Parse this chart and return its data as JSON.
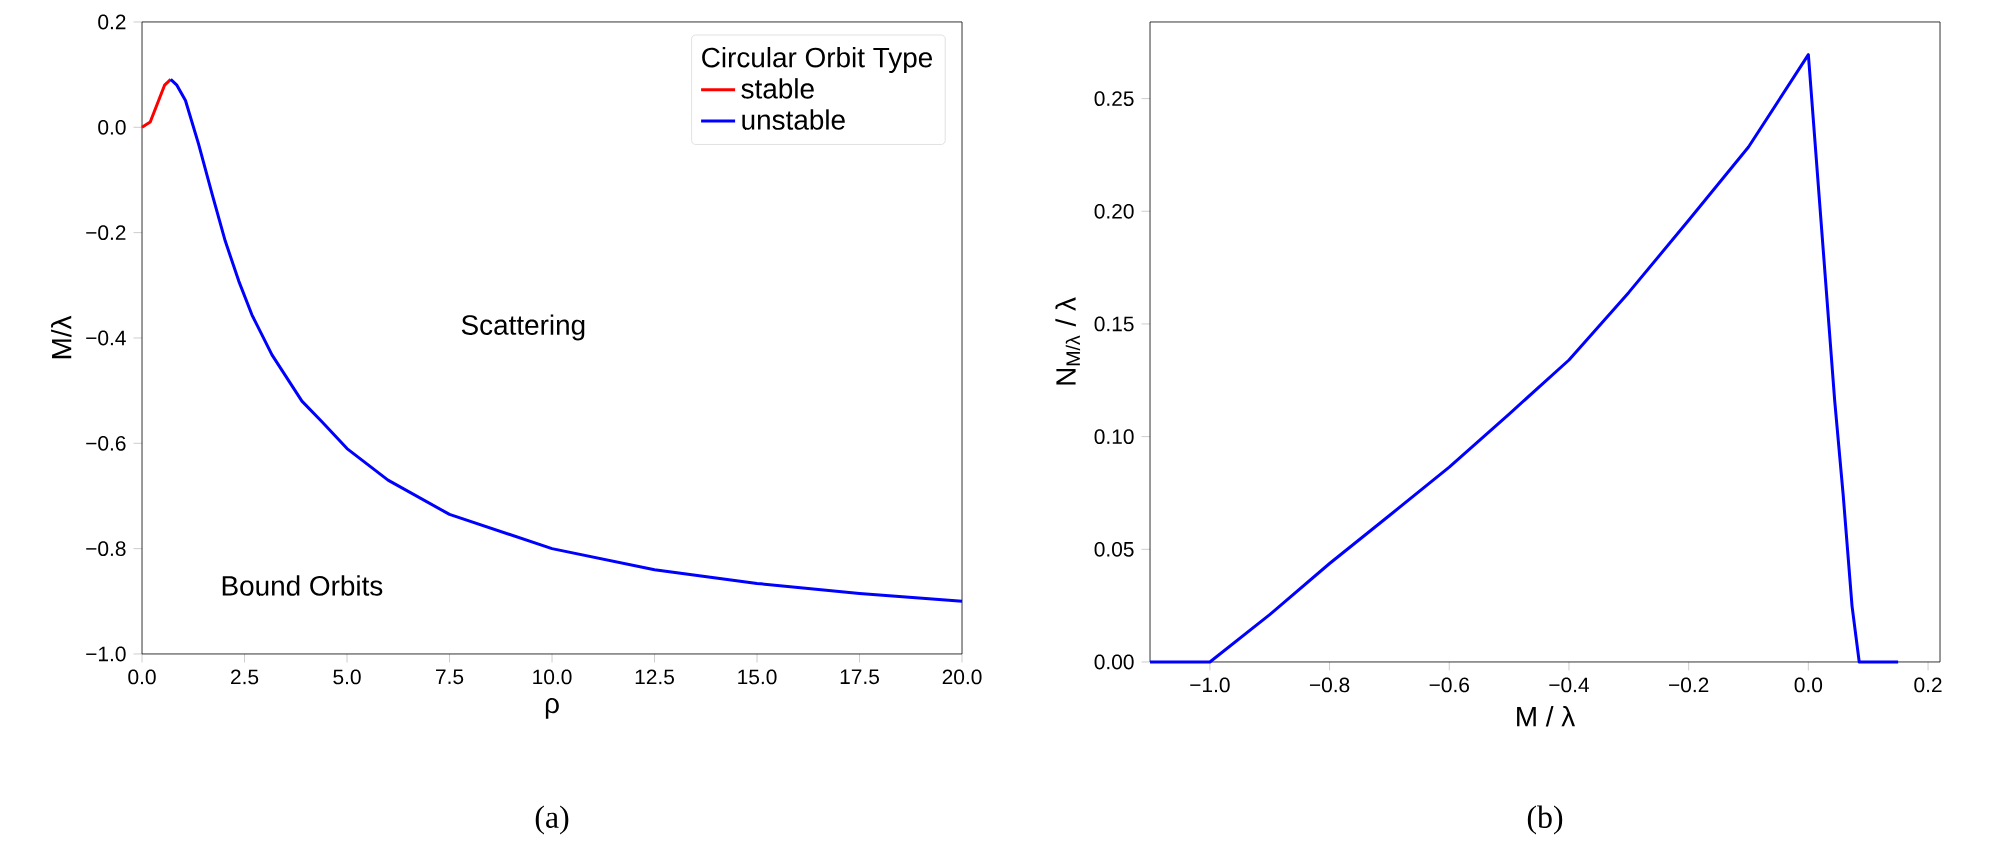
{
  "chart_data": [
    {
      "type": "line",
      "title": "(a)",
      "xlabel": "ρ",
      "ylabel": "M/λ",
      "legend_title": "Circular Orbit Type",
      "legend": "top right",
      "annotations": [
        "Scattering",
        "Bound Orbits"
      ],
      "xlim": [
        0,
        20
      ],
      "ylim": [
        -1.0,
        0.2
      ],
      "xticks": [
        {
          "value": 0,
          "label": "0.0"
        },
        {
          "value": 2.5,
          "label": "2.5"
        },
        {
          "value": 5,
          "label": "5.0"
        },
        {
          "value": 7.5,
          "label": "7.5"
        },
        {
          "value": 10,
          "label": "10.0"
        },
        {
          "value": 12.5,
          "label": "12.5"
        },
        {
          "value": 15,
          "label": "15.0"
        },
        {
          "value": 17.5,
          "label": "17.5"
        },
        {
          "value": 20,
          "label": "20.0"
        }
      ],
      "yticks": [
        {
          "value": -1.0,
          "label": "−1.0"
        },
        {
          "value": -0.8,
          "label": "−0.8"
        },
        {
          "value": -0.6,
          "label": "−0.6"
        },
        {
          "value": -0.4,
          "label": "−0.4"
        },
        {
          "value": -0.2,
          "label": "−0.2"
        },
        {
          "value": 0.0,
          "label": "0.0"
        },
        {
          "value": 0.2,
          "label": "0.2"
        }
      ],
      "series": [
        {
          "name": "stable",
          "color": "#ff0000",
          "x": [
            0,
            0.2,
            0.4,
            0.55,
            0.7
          ],
          "values": [
            0,
            0.01,
            0.05,
            0.08,
            0.091
          ]
        },
        {
          "name": "unstable",
          "color": "#0000ff",
          "x": [
            0.7,
            0.85,
            1.06,
            1.38,
            1.71,
            2.03,
            2.36,
            2.68,
            3.17,
            3.9,
            4.4,
            5,
            6,
            7.5,
            10,
            12.5,
            15,
            17.5,
            20
          ],
          "values": [
            0.091,
            0.08,
            0.051,
            -0.032,
            -0.127,
            -0.216,
            -0.292,
            -0.356,
            -0.432,
            -0.52,
            -0.56,
            -0.61,
            -0.67,
            -0.735,
            -0.8,
            -0.84,
            -0.866,
            -0.885,
            -0.9
          ]
        }
      ]
    },
    {
      "type": "line",
      "title": "(b)",
      "xlabel": "M / λ",
      "ylabel": "N$_{M/λ}$ / λ",
      "xlim": [
        -1.1,
        0.22
      ],
      "ylim": [
        0,
        0.284
      ],
      "xticks": [
        {
          "value": -1.0,
          "label": "−1.0"
        },
        {
          "value": -0.8,
          "label": "−0.8"
        },
        {
          "value": -0.6,
          "label": "−0.6"
        },
        {
          "value": -0.4,
          "label": "−0.4"
        },
        {
          "value": -0.2,
          "label": "−0.2"
        },
        {
          "value": 0.0,
          "label": "0.0"
        },
        {
          "value": 0.2,
          "label": "0.2"
        }
      ],
      "yticks": [
        {
          "value": 0,
          "label": "0.00"
        },
        {
          "value": 0.05,
          "label": "0.05"
        },
        {
          "value": 0.1,
          "label": "0.10"
        },
        {
          "value": 0.15,
          "label": "0.15"
        },
        {
          "value": 0.2,
          "label": "0.20"
        },
        {
          "value": 0.25,
          "label": "0.25"
        }
      ],
      "series": [
        {
          "color": "#0000ff",
          "x": [
            -1.1,
            -1.0,
            -0.9,
            -0.8,
            -0.7,
            -0.6,
            -0.5,
            -0.4,
            -0.3,
            -0.2,
            -0.1,
            0.0,
            0.044,
            0.058,
            0.073,
            0.085,
            0.15
          ],
          "values": [
            0,
            0,
            0.021,
            0.0437,
            0.065,
            0.0865,
            0.11,
            0.134,
            0.164,
            0.196,
            0.2285,
            0.2695,
            0.116,
            0.0747,
            0.0248,
            0,
            0
          ]
        }
      ]
    }
  ]
}
